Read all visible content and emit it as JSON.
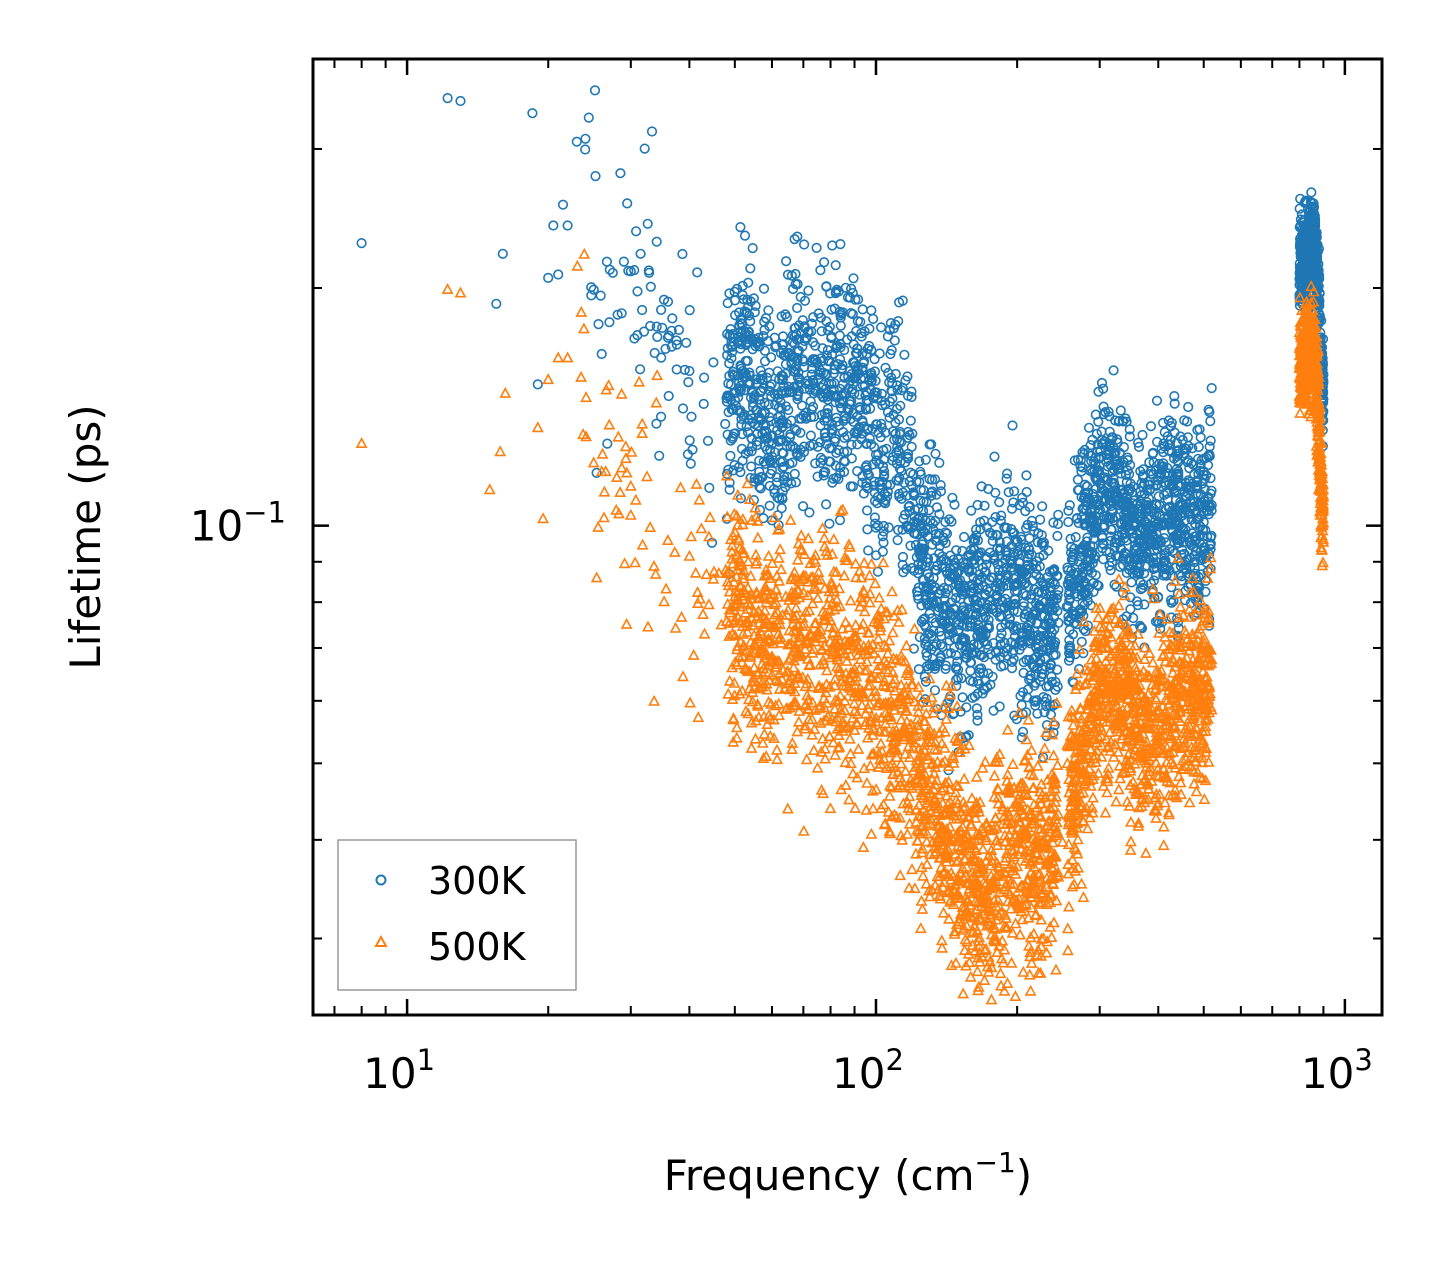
{
  "chart_data": {
    "type": "scatter",
    "title": "",
    "xlabel": "Frequency (cm",
    "xlabel_sup": "−1",
    "xlabel_tail": ")",
    "ylabel": "Lifetime (ps)",
    "xscale": "log",
    "yscale": "log",
    "xlim": [
      6.3,
      1200
    ],
    "ylim": [
      0.024,
      0.39
    ],
    "x_major_ticks": [
      {
        "value": 10,
        "base": "10",
        "exp": "1"
      },
      {
        "value": 100,
        "base": "10",
        "exp": "2"
      },
      {
        "value": 1000,
        "base": "10",
        "exp": "3"
      }
    ],
    "y_major_ticks": [
      {
        "value": 0.1,
        "base": "10",
        "exp": "−1"
      }
    ],
    "legend_position": "lower-left",
    "series": [
      {
        "name": "300K",
        "marker": "circle",
        "color": "#1f77b4",
        "points": [
          [
            8,
            0.228
          ],
          [
            12.2,
            0.348
          ],
          [
            13,
            0.345
          ],
          [
            15.5,
            0.191
          ],
          [
            16,
            0.221
          ],
          [
            18.5,
            0.333
          ],
          [
            19,
            0.151
          ],
          [
            20,
            0.206
          ],
          [
            20.5,
            0.24
          ],
          [
            21,
            0.208
          ],
          [
            21.5,
            0.255
          ],
          [
            22,
            0.24
          ],
          [
            24,
            0.309
          ],
          [
            25,
            0.199
          ],
          [
            26,
            0.165
          ],
          [
            27,
            0.181
          ],
          [
            29,
            0.216
          ],
          [
            30,
            0.21
          ],
          [
            31,
            0.198
          ],
          [
            33,
            0.179
          ],
          [
            35,
            0.178
          ],
          [
            36,
            0.173
          ],
          [
            38,
            0.177
          ],
          [
            40,
            0.157
          ],
          [
            43,
            0.154
          ],
          [
            45,
            0.161
          ],
          [
            48,
            0.145
          ],
          [
            52,
            0.157
          ],
          [
            58,
            0.139
          ],
          [
            62,
            0.128
          ],
          [
            68,
            0.163
          ],
          [
            72,
            0.151
          ],
          [
            78,
            0.147
          ],
          [
            85,
            0.151
          ],
          [
            88,
            0.157
          ],
          [
            92,
            0.156
          ],
          [
            100,
            0.123
          ],
          [
            110,
            0.135
          ],
          [
            128,
            0.0831
          ],
          [
            140,
            0.0806
          ],
          [
            150,
            0.0738
          ],
          [
            165,
            0.0748
          ],
          [
            180,
            0.0837
          ],
          [
            200,
            0.0847
          ],
          [
            210,
            0.0778
          ],
          [
            240,
            0.0739
          ],
          [
            280,
            0.0943
          ],
          [
            300,
            0.116
          ],
          [
            320,
            0.113
          ],
          [
            360,
            0.0974
          ],
          [
            410,
            0.101
          ],
          [
            450,
            0.103
          ],
          [
            500,
            0.101
          ],
          [
            820,
            0.226
          ],
          [
            840,
            0.229
          ],
          [
            860,
            0.201
          ],
          [
            870,
            0.178
          ],
          [
            880,
            0.158
          ],
          [
            890,
            0.147
          ]
        ]
      },
      {
        "name": "500K",
        "marker": "triangle",
        "color": "#ff7f0e",
        "points": [
          [
            8,
            0.127
          ],
          [
            12.2,
            0.199
          ],
          [
            13,
            0.197
          ],
          [
            15,
            0.111
          ],
          [
            15.8,
            0.124
          ],
          [
            16.2,
            0.147
          ],
          [
            19,
            0.133
          ],
          [
            19.5,
            0.102
          ],
          [
            20,
            0.153
          ],
          [
            21,
            0.163
          ],
          [
            22,
            0.163
          ],
          [
            23.5,
            0.154
          ],
          [
            25,
            0.12
          ],
          [
            26,
            0.117
          ],
          [
            28,
            0.115
          ],
          [
            30,
            0.103
          ],
          [
            33,
            0.0994
          ],
          [
            36,
            0.0957
          ],
          [
            40,
            0.0914
          ],
          [
            45,
            0.0855
          ],
          [
            50,
            0.0792
          ],
          [
            55,
            0.0726
          ],
          [
            60,
            0.0682
          ],
          [
            70,
            0.0708
          ],
          [
            80,
            0.068
          ],
          [
            90,
            0.0658
          ],
          [
            100,
            0.0607
          ],
          [
            120,
            0.0522
          ],
          [
            140,
            0.0406
          ],
          [
            160,
            0.0357
          ],
          [
            175,
            0.0347
          ],
          [
            200,
            0.0399
          ],
          [
            220,
            0.0383
          ],
          [
            250,
            0.0397
          ],
          [
            280,
            0.0531
          ],
          [
            300,
            0.0618
          ],
          [
            330,
            0.0637
          ],
          [
            360,
            0.0551
          ],
          [
            400,
            0.0542
          ],
          [
            450,
            0.0597
          ],
          [
            500,
            0.0611
          ],
          [
            820,
            0.167
          ],
          [
            840,
            0.165
          ],
          [
            860,
            0.141
          ],
          [
            870,
            0.126
          ],
          [
            880,
            0.111
          ],
          [
            890,
            0.104
          ]
        ]
      }
    ]
  }
}
